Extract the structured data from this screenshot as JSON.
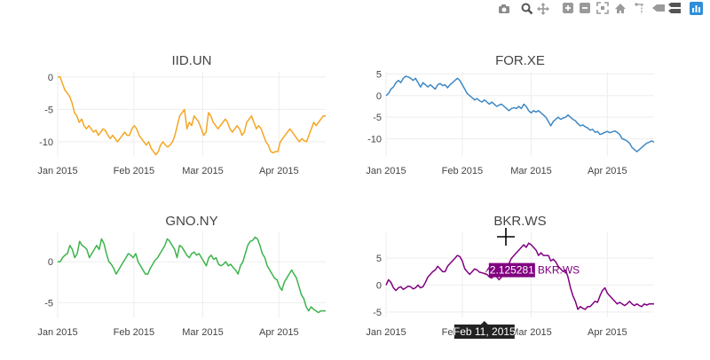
{
  "modebar": {
    "buttons": [
      {
        "name": "camera-icon",
        "label": "Download plot as a png"
      },
      {
        "name": "zoom-icon",
        "label": "Zoom"
      },
      {
        "name": "pan-icon",
        "label": "Pan"
      },
      {
        "name": "zoom-in-icon",
        "label": "Zoom in"
      },
      {
        "name": "zoom-out-icon",
        "label": "Zoom out"
      },
      {
        "name": "autoscale-icon",
        "label": "Autoscale"
      },
      {
        "name": "reset-axes-icon",
        "label": "Reset axes"
      },
      {
        "name": "spike-lines-icon",
        "label": "Toggle Spike Lines"
      },
      {
        "name": "hover-closest-icon",
        "label": "Show closest data on hover"
      },
      {
        "name": "hover-compare-icon",
        "label": "Compare data on hover"
      },
      {
        "name": "plotly-logo-icon",
        "label": "Produced with Plotly"
      }
    ]
  },
  "hover": {
    "value": "2.125281",
    "series": "BKR.WS",
    "date": "Feb 11, 2015",
    "series_color": "#800080",
    "axis_label_color": "#222222"
  },
  "chart_data": [
    {
      "type": "line",
      "title": "IID.UN",
      "color": "#f5a623",
      "x_ticks": [
        "Jan 2015",
        "Feb 2015",
        "Mar 2015",
        "Apr 2015"
      ],
      "y_ticks": [
        0,
        -5,
        -10
      ],
      "ylim": [
        -12.2,
        0.8
      ],
      "grid": true,
      "start": "2015-01-01",
      "end": "2015-04-20",
      "values": [
        0,
        0,
        -1,
        -2,
        -2.5,
        -3,
        -4,
        -5.5,
        -6,
        -7,
        -6.5,
        -7.5,
        -8,
        -7.5,
        -8,
        -8.5,
        -8.2,
        -9,
        -8.5,
        -8,
        -8.3,
        -9,
        -9.5,
        -9,
        -9.5,
        -10,
        -9.5,
        -9,
        -8.5,
        -9,
        -9,
        -8,
        -7.5,
        -8,
        -9,
        -9.5,
        -10,
        -10.5,
        -10,
        -11,
        -11.5,
        -12,
        -11.5,
        -10.5,
        -10,
        -10.5,
        -10.8,
        -10.5,
        -10,
        -9,
        -7.5,
        -6,
        -5.5,
        -5,
        -8,
        -7,
        -7.5,
        -6,
        -6.5,
        -7,
        -8,
        -9,
        -8.5,
        -5.5,
        -6,
        -7,
        -7.5,
        -8,
        -7.5,
        -7,
        -6.5,
        -7,
        -8,
        -8.5,
        -8,
        -7.5,
        -8,
        -9,
        -8.5,
        -7,
        -6.5,
        -6,
        -7,
        -8,
        -7.5,
        -8,
        -9,
        -10,
        -10.5,
        -11.5,
        -11.7,
        -11.5,
        -11.5,
        -10,
        -9.5,
        -9,
        -8.5,
        -8,
        -8.5,
        -9,
        -9.5,
        -10,
        -9.5,
        -9.8,
        -10,
        -9,
        -8,
        -7,
        -7.5,
        -7,
        -6.5,
        -6,
        -6
      ]
    },
    {
      "type": "line",
      "title": "FOR.XE",
      "color": "#3f88c5",
      "x_ticks": [
        "Jan 2015",
        "Feb 2015",
        "Mar 2015",
        "Apr 2015"
      ],
      "y_ticks": [
        5,
        0,
        -5,
        -10
      ],
      "ylim": [
        -14,
        5.5
      ],
      "grid": true,
      "start": "2015-01-01",
      "end": "2015-04-20",
      "values": [
        0,
        0.5,
        1.5,
        2,
        3,
        3.5,
        3,
        4,
        4.5,
        4.3,
        4,
        3.5,
        4,
        3,
        2,
        3,
        2.5,
        2,
        2.5,
        2,
        1.5,
        2.5,
        2.8,
        2.3,
        2.5,
        1.8,
        2.5,
        3,
        3.5,
        4,
        3.5,
        2.5,
        1.5,
        0.5,
        0,
        -0.5,
        -1,
        -0.7,
        -1.2,
        -1.5,
        -1,
        -1.5,
        -2,
        -1.5,
        -2,
        -2.5,
        -2.2,
        -2,
        -2.5,
        -3,
        -3.5,
        -3,
        -2.8,
        -3,
        -2.5,
        -3,
        -2,
        -2.5,
        -3.5,
        -4,
        -3.5,
        -3.8,
        -3.5,
        -4,
        -4.5,
        -5,
        -6,
        -7,
        -6,
        -5.5,
        -5,
        -5.5,
        -5.2,
        -5,
        -4.5,
        -5,
        -5.5,
        -5.8,
        -6.5,
        -7,
        -6.8,
        -7.2,
        -7.5,
        -8,
        -7.8,
        -8.5,
        -8.3,
        -9,
        -8.8,
        -8.5,
        -8.3,
        -8.6,
        -8.4,
        -8.2,
        -8.5,
        -9,
        -10,
        -10.2,
        -10.5,
        -11,
        -12,
        -12.5,
        -13,
        -12.5,
        -12,
        -11.5,
        -11,
        -10.8,
        -10.5,
        -10.8
      ]
    },
    {
      "type": "line",
      "title": "GNO.NY",
      "color": "#3cb44b",
      "x_ticks": [
        "Jan 2015",
        "Feb 2015",
        "Mar 2015",
        "Apr 2015"
      ],
      "y_ticks": [
        0,
        -5
      ],
      "ylim": [
        -6.8,
        3.6
      ],
      "grid": true,
      "start": "2015-01-01",
      "end": "2015-04-20",
      "values": [
        0,
        0,
        0.5,
        0.8,
        1,
        2,
        1.5,
        0.5,
        1,
        2.5,
        2,
        1.8,
        1.5,
        0.5,
        1,
        1.5,
        2,
        1.5,
        2.8,
        2.2,
        1,
        0,
        -0.3,
        -0.8,
        -1.5,
        -1,
        -0.5,
        0,
        0.5,
        1,
        0.8,
        0.5,
        1,
        0,
        -0.5,
        -1,
        -1.5,
        -1.5,
        -0.8,
        -0.3,
        0.2,
        0.5,
        1,
        1.5,
        2,
        2.8,
        2.5,
        2,
        1.5,
        0.5,
        2,
        1.8,
        1.3,
        0.8,
        0.5,
        1,
        1.2,
        0.8,
        1,
        0.5,
        0,
        -0.5,
        0.5,
        0.8,
        0.3,
        0.5,
        -0.3,
        -0.5,
        -0.3,
        0,
        -0.5,
        -0.3,
        -0.7,
        -1,
        -1.5,
        -0.5,
        0,
        1,
        2,
        2.5,
        2.6,
        3,
        2.8,
        2,
        1,
        0.5,
        -0.5,
        -1,
        -1.5,
        -2,
        -2.2,
        -3,
        -3.5,
        -2.5,
        -2,
        -1.5,
        -1,
        -1.5,
        -2,
        -3,
        -4,
        -4.5,
        -5.5,
        -6,
        -5.5,
        -5.8,
        -6,
        -6.2,
        -6,
        -6,
        -6
      ]
    },
    {
      "type": "line",
      "title": "BKR.WS",
      "color": "#800080",
      "x_ticks": [
        "Jan 2015",
        "Feb 2015",
        "Mar 2015",
        "Apr 2015"
      ],
      "y_ticks": [
        5,
        0,
        -5
      ],
      "ylim": [
        -6,
        9.8
      ],
      "grid": true,
      "start": "2015-01-01",
      "end": "2015-04-20",
      "values": [
        0,
        1,
        0.5,
        -0.5,
        -1,
        -0.5,
        -0.3,
        -0.8,
        -0.5,
        -0.2,
        -0.3,
        -0.7,
        -0.5,
        0,
        -0.5,
        -0.3,
        0.5,
        1.5,
        2,
        2.5,
        2.8,
        3.5,
        3,
        2.5,
        2.5,
        3.5,
        4,
        4.5,
        5,
        5.5,
        5.3,
        4.5,
        3,
        2.5,
        2,
        2.5,
        3,
        2.8,
        2.4,
        2.3,
        2.125281,
        2,
        1.5,
        1.3,
        1.8,
        1.5,
        1,
        1.5,
        2,
        3,
        4,
        5,
        5.5,
        6,
        6.5,
        7,
        7.5,
        7,
        7.8,
        7.5,
        7,
        6.5,
        5.5,
        6,
        5.5,
        5.5,
        5.5,
        4.5,
        4.8,
        4.3,
        3.5,
        3,
        2.5,
        2.8,
        1.5,
        -0.5,
        -2,
        -3,
        -4.5,
        -4,
        -4.3,
        -4.5,
        -4,
        -4,
        -3.5,
        -3,
        -3.2,
        -2,
        -1,
        -0.5,
        -1.5,
        -2,
        -2.5,
        -3,
        -3.5,
        -3.2,
        -3.5,
        -3.8,
        -3.5,
        -3,
        -3.5,
        -3.8,
        -3.5,
        -3.8,
        -4,
        -3.5,
        -3.7,
        -3.5,
        -3.5,
        -3.5
      ]
    }
  ]
}
